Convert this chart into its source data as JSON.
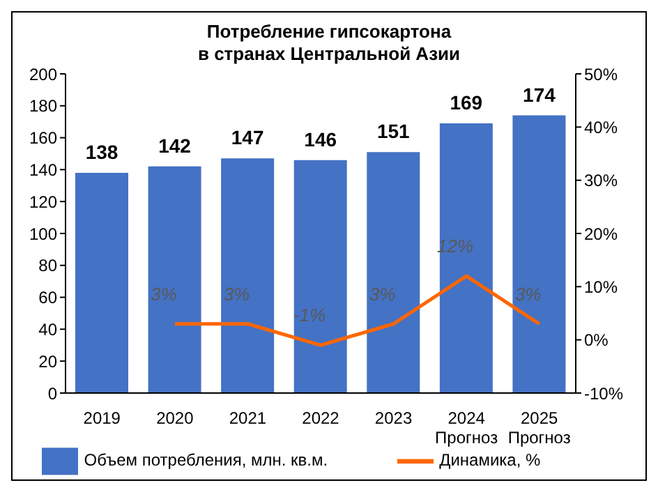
{
  "chart_data": {
    "type": "bar",
    "title": "Потребление гипсокартона\nв странах Центральной Азии",
    "categories": [
      "2019",
      "2020",
      "2021",
      "2022",
      "2023",
      "2024\nПрогноз",
      "2025\nПрогноз"
    ],
    "series": [
      {
        "name": "Объем потребления, млн. кв.м.",
        "color": "#4472c4",
        "values": [
          138,
          142,
          147,
          146,
          151,
          169,
          174
        ]
      },
      {
        "name": "Динамика, %",
        "type": "line",
        "axis": "y2",
        "color": "#ff6600",
        "values": [
          null,
          3,
          3,
          -1,
          3,
          12,
          3
        ],
        "value_labels": [
          null,
          "3%",
          "3%",
          "-1%",
          "3%",
          "12%",
          "3%"
        ]
      }
    ],
    "ylim": [
      0,
      200
    ],
    "yticks": [
      0,
      20,
      40,
      60,
      80,
      100,
      120,
      140,
      160,
      180,
      200
    ],
    "y2lim": [
      -10,
      50
    ],
    "y2ticks": [
      {
        "value": -10,
        "label": "-10%"
      },
      {
        "value": 0,
        "label": "0%"
      },
      {
        "value": 10,
        "label": "10%"
      },
      {
        "value": 20,
        "label": "20%"
      },
      {
        "value": 30,
        "label": "30%"
      },
      {
        "value": 40,
        "label": "40%"
      },
      {
        "value": 50,
        "label": "50%"
      }
    ],
    "data_labels": true,
    "grid": false,
    "legend": "bottom",
    "marker": "none",
    "line_style": "solid"
  }
}
